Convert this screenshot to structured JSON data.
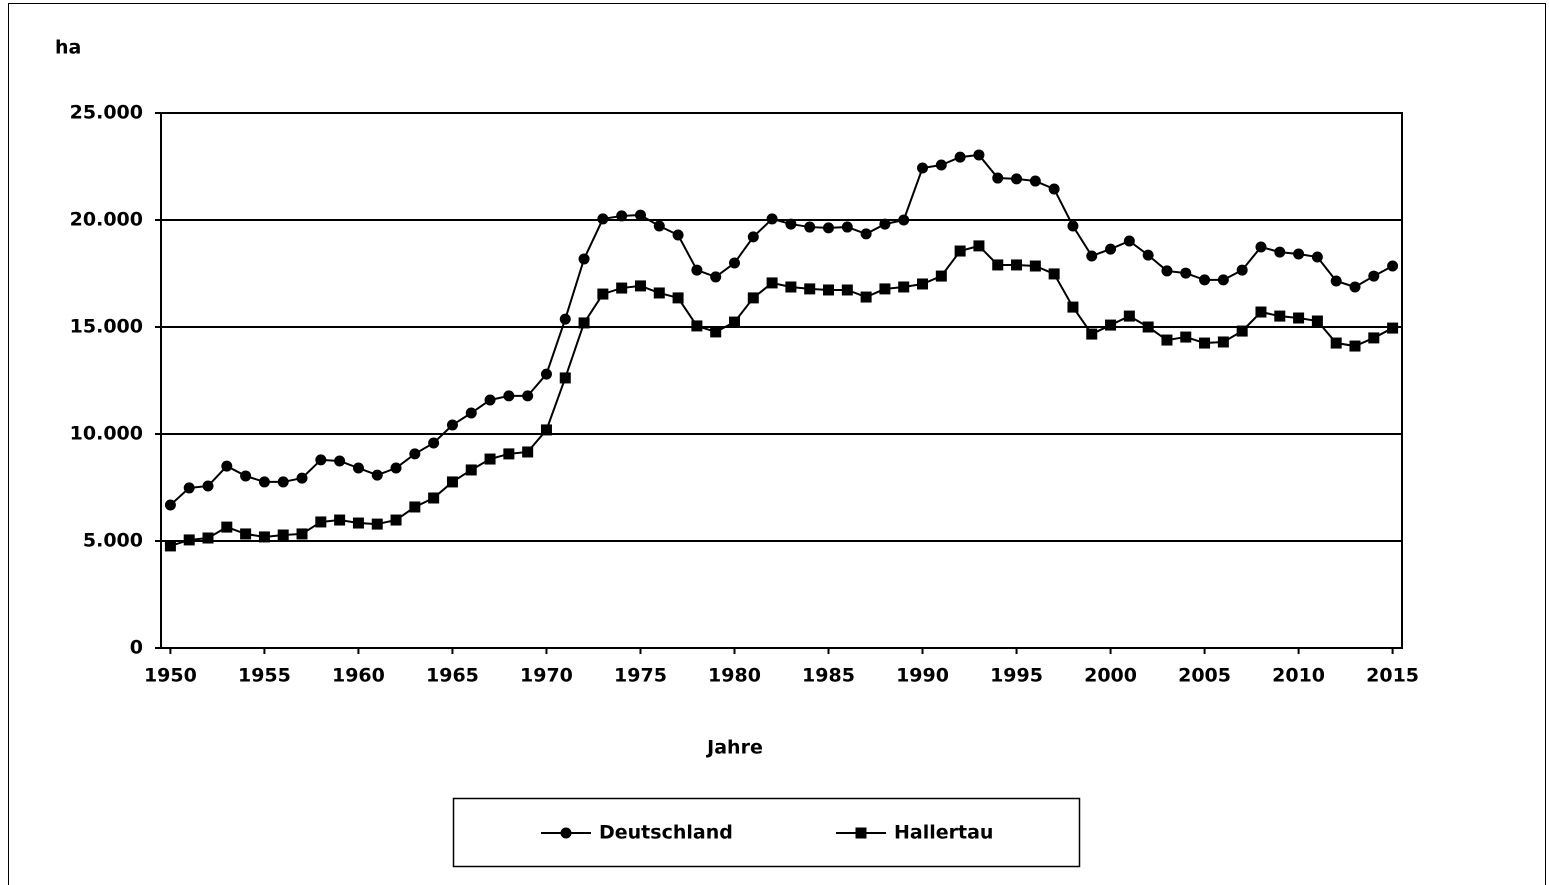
{
  "chart_data": {
    "type": "line",
    "y_label": "ha",
    "x_label": "Jahre",
    "x": [
      1950,
      1951,
      1952,
      1953,
      1954,
      1955,
      1956,
      1957,
      1958,
      1959,
      1960,
      1961,
      1962,
      1963,
      1964,
      1965,
      1966,
      1967,
      1968,
      1969,
      1970,
      1971,
      1972,
      1973,
      1974,
      1975,
      1976,
      1977,
      1978,
      1979,
      1980,
      1981,
      1982,
      1983,
      1984,
      1985,
      1986,
      1987,
      1988,
      1989,
      1990,
      1991,
      1992,
      1993,
      1994,
      1995,
      1996,
      1997,
      1998,
      1999,
      2000,
      2001,
      2002,
      2003,
      2004,
      2005,
      2006,
      2007,
      2008,
      2009,
      2010,
      2011,
      2012,
      2013,
      2014,
      2015
    ],
    "series": [
      {
        "name": "Deutschland",
        "color": "#000000",
        "marker": "circle",
        "values": [
          6680,
          7480,
          7570,
          8500,
          8040,
          7760,
          7760,
          7940,
          8790,
          8740,
          8410,
          8080,
          8410,
          9070,
          9580,
          10420,
          10980,
          11590,
          11780,
          11780,
          12800,
          15370,
          18180,
          20050,
          20190,
          20230,
          19720,
          19300,
          17660,
          17340,
          17990,
          19210,
          20050,
          19810,
          19670,
          19630,
          19670,
          19350,
          19810,
          20000,
          22430,
          22570,
          22940,
          23040,
          21960,
          21920,
          21820,
          21450,
          19720,
          18320,
          18640,
          19020,
          18360,
          17620,
          17520,
          17200,
          17200,
          17660,
          18740,
          18500,
          18410,
          18270,
          17150,
          16870,
          17380,
          17850
        ]
      },
      {
        "name": "Hallertau",
        "color": "#000000",
        "marker": "square",
        "values": [
          4770,
          5050,
          5140,
          5650,
          5330,
          5190,
          5280,
          5330,
          5890,
          5980,
          5840,
          5790,
          5980,
          6590,
          7010,
          7760,
          8320,
          8830,
          9070,
          9160,
          10190,
          12620,
          15190,
          16540,
          16820,
          16920,
          16590,
          16360,
          15050,
          14770,
          15230,
          16360,
          17060,
          16870,
          16780,
          16730,
          16730,
          16400,
          16780,
          16870,
          17010,
          17380,
          18550,
          18790,
          17900,
          17900,
          17850,
          17480,
          15930,
          14670,
          15090,
          15510,
          15000,
          14390,
          14530,
          14250,
          14300,
          14810,
          15700,
          15510,
          15420,
          15280,
          14250,
          14110,
          14490,
          14950
        ]
      }
    ],
    "xlim": [
      1949.5,
      2015.5
    ],
    "xticks": [
      1950,
      1955,
      1960,
      1965,
      1970,
      1975,
      1980,
      1985,
      1990,
      1995,
      2000,
      2005,
      2010,
      2015
    ],
    "ylim": [
      0,
      25000
    ],
    "yticks": [
      0,
      {
        "value": 5000,
        "label": "5.000"
      },
      {
        "value": 10000,
        "label": "10.000"
      },
      {
        "value": 15000,
        "label": "15.000"
      },
      {
        "value": 20000,
        "label": "20.000"
      },
      {
        "value": 25000,
        "label": "25.000"
      }
    ],
    "grid": true,
    "legend": "bottom"
  }
}
